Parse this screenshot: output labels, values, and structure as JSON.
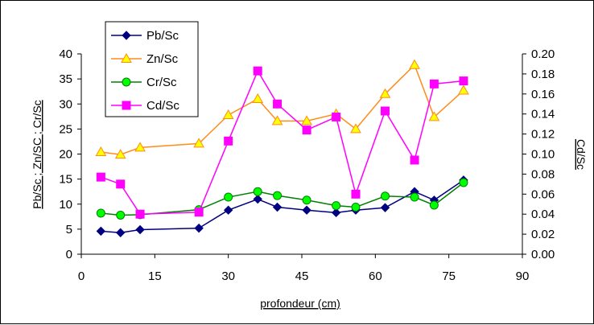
{
  "chart_data": {
    "type": "line",
    "xlabel": "profondeur (cm)",
    "ylabel": "Pb/Sc ; Zn/SC ; Cr/Sc",
    "y2label": "Cd/Sc",
    "xlim": [
      0,
      90
    ],
    "ylim": [
      0,
      40
    ],
    "y2lim": [
      0,
      0.2
    ],
    "x_ticks": [
      "0",
      "15",
      "30",
      "45",
      "60",
      "75",
      "90"
    ],
    "y_ticks": [
      "0",
      "5",
      "10",
      "15",
      "20",
      "25",
      "30",
      "35",
      "40"
    ],
    "y2_ticks": [
      "0.00",
      "0.02",
      "0.04",
      "0.06",
      "0.08",
      "0.10",
      "0.12",
      "0.14",
      "0.16",
      "0.18",
      "0.20"
    ],
    "grid": false,
    "legend_position": "top-left",
    "series": [
      {
        "name": "Pb/Sc",
        "axis": "left",
        "color": "#000080",
        "marker": "diamond",
        "marker_fill": "#000080",
        "x": [
          4,
          8,
          12,
          24,
          30,
          36,
          40,
          46,
          52,
          56,
          62,
          68,
          72,
          78
        ],
        "y": [
          4.6,
          4.3,
          4.9,
          5.2,
          8.8,
          11.0,
          9.4,
          8.8,
          8.3,
          8.8,
          9.3,
          12.5,
          10.8,
          14.8
        ]
      },
      {
        "name": "Zn/Sc",
        "axis": "left",
        "color": "#FF8C1A",
        "marker": "triangle",
        "marker_fill": "#FFFF00",
        "x": [
          4,
          8,
          12,
          24,
          30,
          36,
          40,
          46,
          52,
          56,
          62,
          68,
          72,
          78
        ],
        "y": [
          20.4,
          19.9,
          21.3,
          22.1,
          27.8,
          31.0,
          26.6,
          26.6,
          28.0,
          25.0,
          32.0,
          37.8,
          27.4,
          32.7
        ]
      },
      {
        "name": "Cr/Sc",
        "axis": "left",
        "color": "#008000",
        "marker": "circle",
        "marker_fill": "#00FF00",
        "x": [
          4,
          8,
          12,
          24,
          30,
          36,
          40,
          46,
          52,
          56,
          62,
          68,
          72,
          78
        ],
        "y": [
          8.2,
          7.8,
          7.9,
          8.9,
          11.4,
          12.5,
          11.7,
          10.8,
          9.7,
          9.4,
          11.6,
          11.4,
          9.8,
          14.3
        ]
      },
      {
        "name": "Cd/Sc",
        "axis": "right",
        "color": "#FF00FF",
        "marker": "square",
        "marker_fill": "#FF00FF",
        "x": [
          4,
          8,
          12,
          24,
          30,
          36,
          40,
          46,
          52,
          56,
          62,
          68,
          72,
          78
        ],
        "y": [
          0.077,
          0.07,
          0.04,
          0.042,
          0.113,
          0.183,
          0.15,
          0.124,
          0.137,
          0.06,
          0.143,
          0.094,
          0.17,
          0.173
        ]
      }
    ]
  }
}
